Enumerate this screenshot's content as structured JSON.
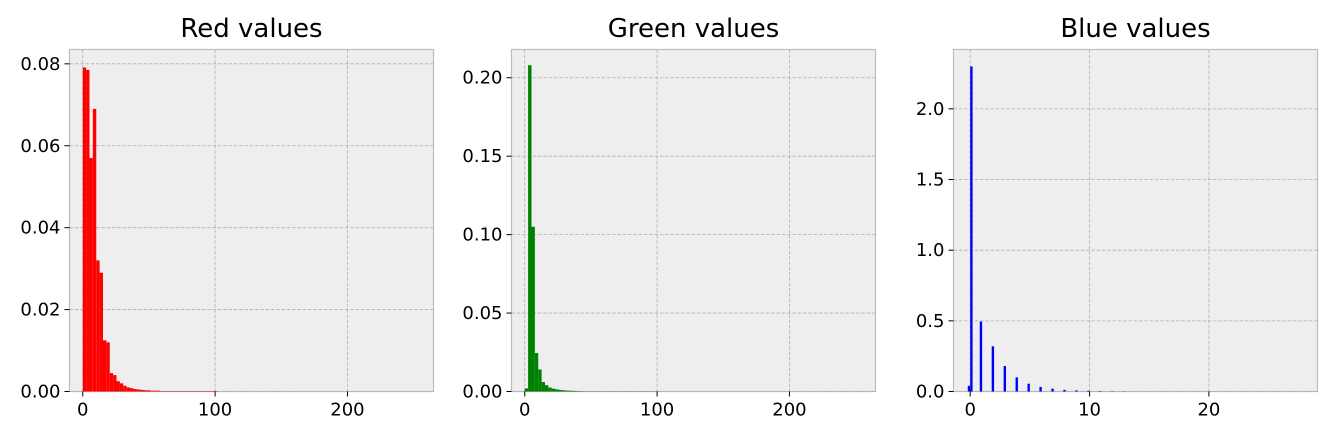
{
  "colors": {
    "background": "#ffffff",
    "panel": "#eeeeee",
    "frame": "#bcbcbc",
    "grid": "#b0b0b0"
  },
  "chart_data": [
    {
      "type": "bar",
      "subtype": "histogram",
      "title": "Red values",
      "xlabel": "",
      "ylabel": "",
      "color": "#ff0000",
      "grid": true,
      "xlim": [
        -10,
        265
      ],
      "ylim": [
        0,
        0.0835
      ],
      "xticks": [
        0,
        100,
        200
      ],
      "yticks": [
        0.0,
        0.02,
        0.04,
        0.06,
        0.08
      ],
      "ytick_labels": [
        "0.00",
        "0.02",
        "0.04",
        "0.06",
        "0.08"
      ],
      "bin_edges_start": 0,
      "bin_width": 2.55,
      "values": [
        0.0791,
        0.0785,
        0.057,
        0.069,
        0.032,
        0.029,
        0.0125,
        0.012,
        0.0045,
        0.004,
        0.0025,
        0.002,
        0.0014,
        0.001,
        0.0008,
        0.0006,
        0.0005,
        0.0004,
        0.0003,
        0.0003,
        0.0002,
        0.0002,
        0.0002,
        0.0001,
        0.0001,
        0.0001,
        0.0001,
        0.0001,
        0.0001,
        0.0001,
        0.0001,
        0.0001,
        0.0001,
        0.0001,
        0.0001,
        0.0001,
        0.0001,
        0.0001,
        0.0001,
        0.0001
      ]
    },
    {
      "type": "bar",
      "subtype": "histogram",
      "title": "Green values",
      "xlabel": "",
      "ylabel": "",
      "color": "#008000",
      "grid": true,
      "xlim": [
        -10,
        265
      ],
      "ylim": [
        0,
        0.218
      ],
      "xticks": [
        0,
        100,
        200
      ],
      "yticks": [
        0.0,
        0.05,
        0.1,
        0.15,
        0.2
      ],
      "ytick_labels": [
        "0.00",
        "0.05",
        "0.10",
        "0.15",
        "0.20"
      ],
      "bin_edges_start": 0,
      "bin_width": 2.55,
      "values": [
        0.002,
        0.208,
        0.105,
        0.0245,
        0.014,
        0.006,
        0.004,
        0.0025,
        0.0018,
        0.0014,
        0.001,
        0.0008,
        0.0006,
        0.0005,
        0.0004,
        0.0003,
        0.0002,
        0.0002,
        0.0001,
        0.0001,
        0.0001,
        0.0001,
        0.0001,
        0.0001,
        0.0001,
        0.0001,
        0.0001,
        0.0001,
        0.0001,
        0.0001,
        0.0001,
        0.0001,
        0.0001,
        0.0001,
        0.0001,
        0.0001,
        0.0001,
        0.0001,
        0.0001,
        0.0001
      ]
    },
    {
      "type": "bar",
      "subtype": "histogram",
      "title": "Blue values",
      "xlabel": "",
      "ylabel": "",
      "color": "#0000ff",
      "grid": true,
      "xlim": [
        -1.4,
        29.1
      ],
      "ylim": [
        0,
        2.42
      ],
      "xticks": [
        0,
        10,
        20
      ],
      "yticks": [
        0.0,
        0.5,
        1.0,
        1.5,
        2.0
      ],
      "ytick_labels": [
        "0.0",
        "0.5",
        "1.0",
        "1.5",
        "2.0"
      ],
      "bin_edges_start": -0.2,
      "bin_width": 0.2,
      "values": [
        0.04,
        2.3,
        0,
        0,
        0,
        0.495,
        0,
        0,
        0,
        0,
        0.32,
        0,
        0,
        0,
        0,
        0.18,
        0,
        0,
        0,
        0,
        0.1,
        0,
        0,
        0,
        0,
        0.055,
        0,
        0,
        0,
        0,
        0.032,
        0,
        0,
        0,
        0,
        0.02,
        0,
        0,
        0,
        0,
        0.012,
        0,
        0,
        0,
        0,
        0.008,
        0,
        0,
        0,
        0,
        0.005,
        0,
        0,
        0,
        0,
        0.003,
        0,
        0,
        0,
        0,
        0.002,
        0,
        0,
        0,
        0,
        0.0012
      ]
    }
  ]
}
